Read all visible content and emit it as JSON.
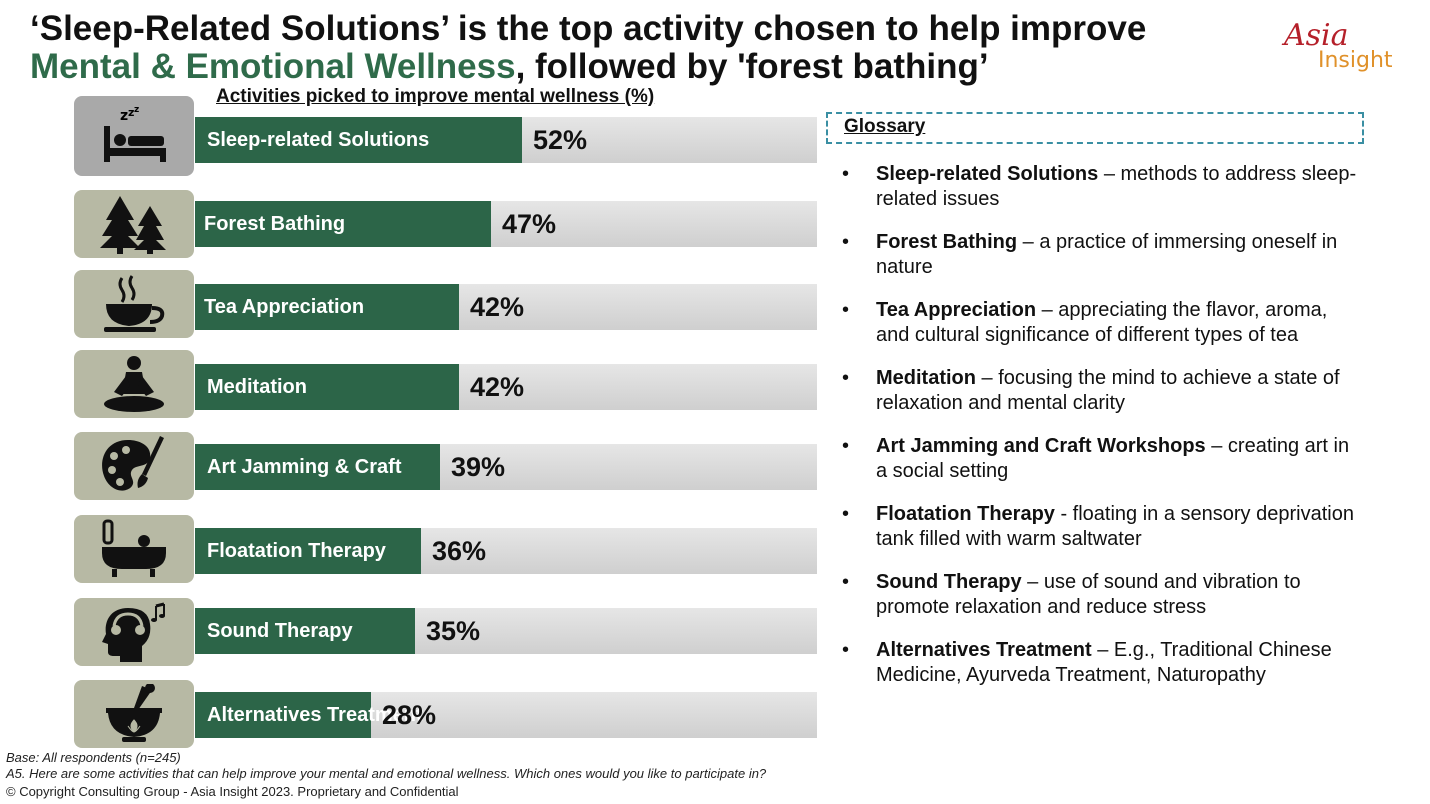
{
  "title": {
    "line1": "‘Sleep-Related Solutions’ is the top activity chosen to help improve",
    "highlight": "Mental & Emotional Wellness",
    "line2_rest": ", followed by 'forest bathing’"
  },
  "logo": {
    "part1": "Asia",
    "part2": "Insight"
  },
  "colors": {
    "bar": "#2c6548",
    "track": "#d9d9d9",
    "icon_bg": "#b7b9a4",
    "accent": "#2f6b4a"
  },
  "chart_data": {
    "type": "bar",
    "title": "Activities picked to improve mental wellness (%)",
    "orientation": "horizontal",
    "categories": [
      "Sleep-related Solutions",
      "Forest Bathing",
      "Tea Appreciation",
      "Meditation",
      "Art Jamming & Craft",
      "Floatation Therapy",
      "Sound Therapy",
      "Alternatives Treatment"
    ],
    "values": [
      52,
      47,
      42,
      42,
      39,
      36,
      35,
      28
    ],
    "value_labels": [
      "52%",
      "47%",
      "42%",
      "42%",
      "39%",
      "36%",
      "35%",
      "28%"
    ],
    "icons": [
      "sleep-bed-icon",
      "trees-icon",
      "tea-cup-icon",
      "meditation-icon",
      "art-palette-icon",
      "bathtub-icon",
      "headphones-icon",
      "mortar-pestle-icon"
    ],
    "xlim": [
      0,
      100
    ]
  },
  "glossary": {
    "heading": "Glossary",
    "items": [
      {
        "term": "Sleep-related Solutions",
        "sep": " – ",
        "desc": "methods to address sleep-related issues"
      },
      {
        "term": "Forest Bathing",
        "sep": " – ",
        "desc": "a practice of immersing oneself in nature"
      },
      {
        "term": "Tea Appreciation",
        "sep": " – ",
        "desc": "appreciating the flavor, aroma, and cultural significance of different types of tea"
      },
      {
        "term": "Meditation",
        "sep": " – ",
        "desc": "focusing the mind to achieve a state of relaxation and mental clarity"
      },
      {
        "term": "Art Jamming and Craft Workshops",
        "sep": " – ",
        "desc": "creating art in a social setting"
      },
      {
        "term": "Floatation Therapy",
        "sep": " - ",
        "desc": "floating in a sensory deprivation tank filled with warm saltwater"
      },
      {
        "term": "Sound Therapy",
        "sep": " – ",
        "desc": "use of sound and vibration to promote relaxation and reduce stress"
      },
      {
        "term": "Alternatives Treatment",
        "sep": " – ",
        "desc": "E.g., Traditional Chinese Medicine, Ayurveda Treatment, Naturopathy"
      }
    ]
  },
  "footer": {
    "base": "Base: All respondents (n=245)",
    "question": "A5. Here are some activities that can help improve your mental and emotional wellness. Which ones would you like to participate in?",
    "copyright": "© Copyright Consulting Group - Asia Insight 2023. Proprietary and Confidential"
  }
}
